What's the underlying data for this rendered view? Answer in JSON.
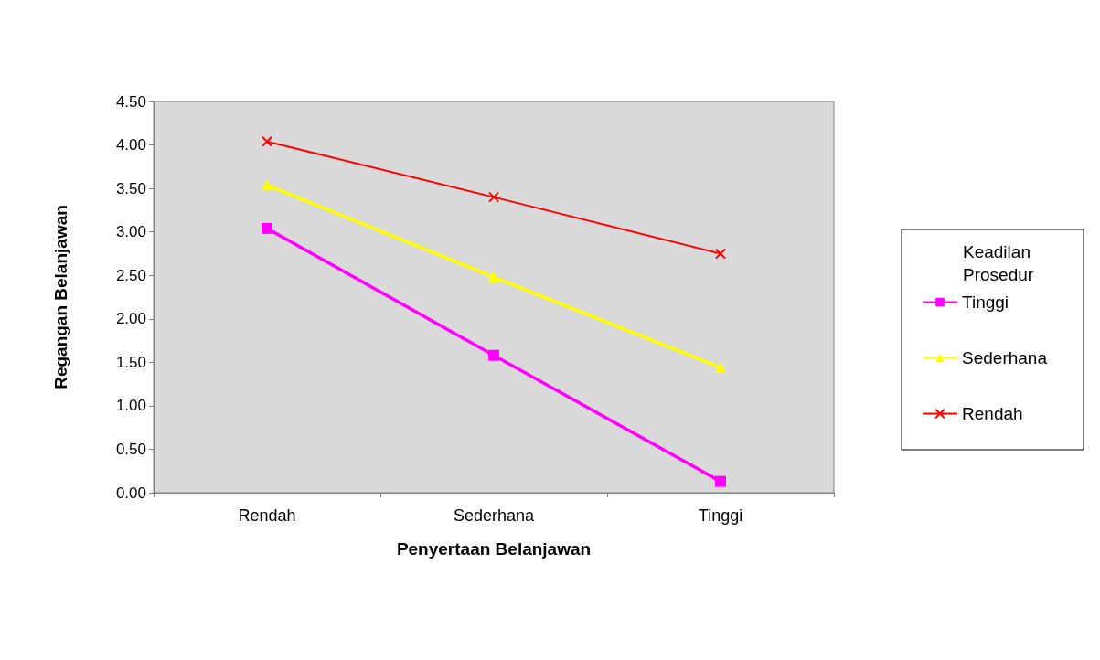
{
  "chart_data": {
    "type": "line",
    "xlabel": "Penyertaan Belanjawan",
    "ylabel": "Regangan Belanjawan",
    "legend_title": "Keadilan\nProsedur",
    "categories": [
      "Rendah",
      "Sederhana",
      "Tinggi"
    ],
    "series": [
      {
        "name": "Tinggi",
        "color": "#ff00ff",
        "marker": "square",
        "values": [
          3.04,
          1.58,
          0.13
        ]
      },
      {
        "name": "Sederhana",
        "color": "#ffff00",
        "marker": "triangle",
        "values": [
          3.54,
          2.48,
          1.44
        ]
      },
      {
        "name": "Rendah",
        "color": "#ff0000",
        "marker": "cross",
        "values": [
          4.04,
          3.4,
          2.75
        ]
      }
    ],
    "ylim": [
      0,
      4.5
    ],
    "yticks": [
      {
        "value": 0,
        "label": "0.00"
      },
      {
        "value": 0.5,
        "label": "0.50"
      },
      {
        "value": 1,
        "label": "1.00"
      },
      {
        "value": 1.5,
        "label": "1.50"
      },
      {
        "value": 2,
        "label": "2.00"
      },
      {
        "value": 2.5,
        "label": "2.50"
      },
      {
        "value": 3,
        "label": "3.00"
      },
      {
        "value": 3.5,
        "label": "3.50"
      },
      {
        "value": 4,
        "label": "4.00"
      },
      {
        "value": 4.5,
        "label": "4.50"
      }
    ],
    "grid": false,
    "legend": "right",
    "line_style": "solid"
  }
}
